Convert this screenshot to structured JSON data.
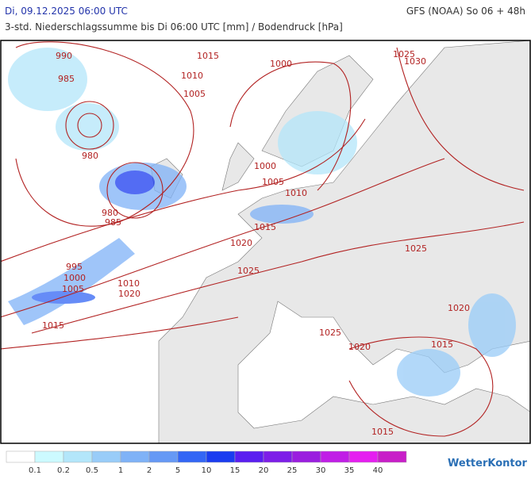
{
  "header": {
    "datetime": "Di, 09.12.2025 06:00 UTC",
    "model": "GFS (NOAA) So 06 + 48h",
    "subtitle": "3-std. Niederschlagssumme bis Di 06:00 UTC [mm] / Bodendruck [hPa]"
  },
  "isobar_labels": [
    "990",
    "1015",
    "985",
    "1010",
    "1005",
    "1000",
    "1025",
    "1030",
    "980",
    "1000",
    "1005",
    "1010",
    "980",
    "985",
    "1015",
    "1020",
    "1025",
    "995",
    "1000",
    "1005",
    "1010",
    "1020",
    "1025",
    "1020",
    "1015",
    "1015",
    "1025",
    "1020",
    "1015"
  ],
  "legend": {
    "ticks": [
      0.1,
      0.2,
      0.5,
      1,
      2,
      5,
      10,
      15,
      20,
      25,
      30,
      35,
      40
    ],
    "colors": [
      "#ffffff",
      "#ccfaff",
      "#b3e6fa",
      "#99ccf8",
      "#7fb2f7",
      "#6699f5",
      "#3366f5",
      "#1a3cf0",
      "#5a1ef0",
      "#7d1ee8",
      "#9a1edf",
      "#c01ee6",
      "#e51ef0",
      "#c81ec8"
    ]
  },
  "logo": "WetterKontor"
}
